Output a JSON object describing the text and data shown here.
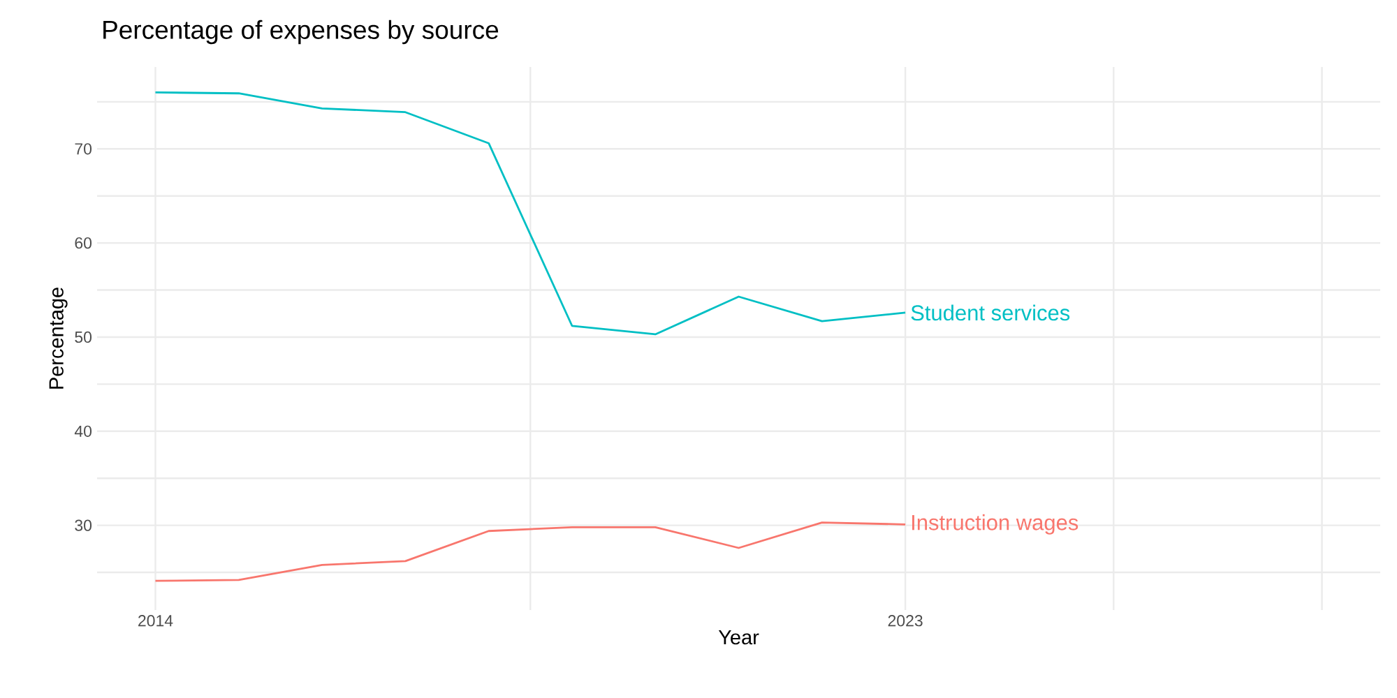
{
  "chart_data": {
    "type": "line",
    "title": "Percentage of expenses by source",
    "xlabel": "Year",
    "ylabel": "Percentage",
    "x": [
      2014,
      2015,
      2016,
      2017,
      2018,
      2019,
      2020,
      2021,
      2022,
      2023
    ],
    "series": [
      {
        "name": "Student services",
        "color": "#00bfc4",
        "values": [
          76.0,
          75.9,
          74.3,
          73.9,
          70.6,
          51.2,
          50.3,
          54.3,
          51.7,
          52.6
        ]
      },
      {
        "name": "Instruction wages",
        "color": "#f8766d",
        "values": [
          24.1,
          24.2,
          25.8,
          26.2,
          29.4,
          29.8,
          29.8,
          27.6,
          30.3,
          30.1
        ]
      }
    ],
    "xlim": [
      2013.3,
      2028.7
    ],
    "ylim": [
      21,
      78.7
    ],
    "xticks": [
      2014,
      {
        "value": 2018.5,
        "label": null
      },
      2023,
      {
        "value": 2025.5,
        "label": null
      },
      {
        "value": 2028,
        "label": null
      }
    ],
    "yticks": [
      {
        "value": 25,
        "label": null
      },
      30,
      {
        "value": 35,
        "label": null
      },
      40,
      {
        "value": 45,
        "label": null
      },
      50,
      {
        "value": 55,
        "label": null
      },
      60,
      {
        "value": 65,
        "label": null
      },
      70,
      {
        "value": 75,
        "label": null
      }
    ],
    "grid": true
  }
}
